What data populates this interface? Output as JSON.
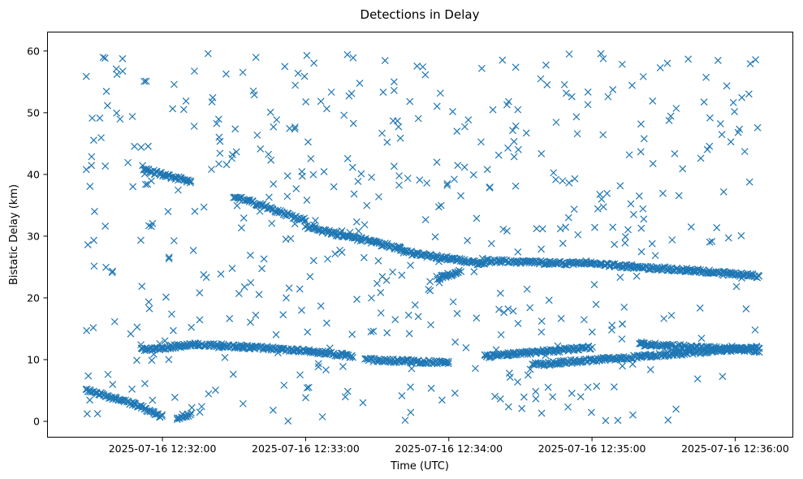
{
  "chart_data": {
    "type": "scatter",
    "title": "Detections in Delay",
    "xlabel": "Time (UTC)",
    "ylabel": "Bistatic Delay (km)",
    "marker": "x",
    "color": "#1f77b4",
    "grid": false,
    "x_tick_labels": [
      "2025-07-16 12:32:00",
      "2025-07-16 12:33:00",
      "2025-07-16 12:34:00",
      "2025-07-16 12:35:00",
      "2025-07-16 12:36:00"
    ],
    "y_ticks": [
      0,
      10,
      20,
      30,
      40,
      50,
      60
    ],
    "xlim": [
      "2025-07-16 12:31:12",
      "2025-07-16 12:36:24"
    ],
    "ylim": [
      -2.5,
      63
    ],
    "tracks": [
      {
        "x_start": "2025-07-16 12:31:28",
        "x_end": "2025-07-16 12:31:48",
        "y_start": 5.2,
        "y_end": 2.8
      },
      {
        "x_start": "2025-07-16 12:31:48",
        "x_end": "2025-07-16 12:32:00",
        "y_start": 2.8,
        "y_end": 0.8
      },
      {
        "x_start": "2025-07-16 12:32:06",
        "x_end": "2025-07-16 12:32:12",
        "y_start": 0.6,
        "y_end": 1.2
      },
      {
        "x_start": "2025-07-16 12:31:51",
        "x_end": "2025-07-16 12:32:15",
        "y_start": 11.6,
        "y_end": 12.5
      },
      {
        "x_start": "2025-07-16 12:32:15",
        "x_end": "2025-07-16 12:33:00",
        "y_start": 12.5,
        "y_end": 11.5
      },
      {
        "x_start": "2025-07-16 12:33:00",
        "x_end": "2025-07-16 12:33:20",
        "y_start": 11.5,
        "y_end": 10.5
      },
      {
        "x_start": "2025-07-16 12:33:25",
        "x_end": "2025-07-16 12:34:00",
        "y_start": 10.0,
        "y_end": 9.5
      },
      {
        "x_start": "2025-07-16 12:34:15",
        "x_end": "2025-07-16 12:35:00",
        "y_start": 10.5,
        "y_end": 12.0
      },
      {
        "x_start": "2025-07-16 12:34:35",
        "x_end": "2025-07-16 12:35:20",
        "y_start": 9.2,
        "y_end": 10.5
      },
      {
        "x_start": "2025-07-16 12:35:20",
        "x_end": "2025-07-16 12:36:10",
        "y_start": 10.5,
        "y_end": 12.0
      },
      {
        "x_start": "2025-07-16 12:35:20",
        "x_end": "2025-07-16 12:36:10",
        "y_start": 12.5,
        "y_end": 11.5
      },
      {
        "x_start": "2025-07-16 12:31:52",
        "x_end": "2025-07-16 12:32:12",
        "y_start": 40.8,
        "y_end": 38.8
      },
      {
        "x_start": "2025-07-16 12:32:30",
        "x_end": "2025-07-16 12:33:00",
        "y_start": 36.5,
        "y_end": 32.5
      },
      {
        "x_start": "2025-07-16 12:33:00",
        "x_end": "2025-07-16 12:33:40",
        "y_start": 31.5,
        "y_end": 28.0
      },
      {
        "x_start": "2025-07-16 12:33:40",
        "x_end": "2025-07-16 12:34:15",
        "y_start": 27.5,
        "y_end": 25.5
      },
      {
        "x_start": "2025-07-16 12:34:15",
        "x_end": "2025-07-16 12:35:00",
        "y_start": 26.0,
        "y_end": 25.5
      },
      {
        "x_start": "2025-07-16 12:35:00",
        "x_end": "2025-07-16 12:35:40",
        "y_start": 25.5,
        "y_end": 24.5
      },
      {
        "x_start": "2025-07-16 12:35:40",
        "x_end": "2025-07-16 12:36:10",
        "y_start": 24.5,
        "y_end": 23.5
      },
      {
        "x_start": "2025-07-16 12:33:55",
        "x_end": "2025-07-16 12:34:05",
        "y_start": 23.2,
        "y_end": 24.2
      }
    ],
    "noise": {
      "x_range": [
        "2025-07-16 12:31:28",
        "2025-07-16 12:36:10"
      ],
      "y_range": [
        0,
        60
      ]
    }
  }
}
